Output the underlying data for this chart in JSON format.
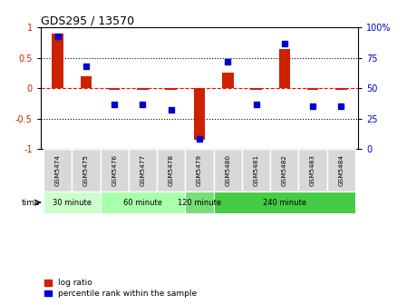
{
  "title": "GDS295 / 13570",
  "samples": [
    "GSM5474",
    "GSM5475",
    "GSM5476",
    "GSM5477",
    "GSM5478",
    "GSM5479",
    "GSM5480",
    "GSM5481",
    "GSM5482",
    "GSM5483",
    "GSM5484"
  ],
  "log_ratio": [
    0.9,
    0.2,
    -0.02,
    -0.03,
    -0.02,
    -0.85,
    0.25,
    -0.03,
    0.65,
    -0.03,
    -0.03
  ],
  "percentile": [
    93,
    68,
    37,
    37,
    32,
    8,
    72,
    37,
    87,
    35,
    35
  ],
  "log_ratio_color": "#cc2200",
  "percentile_color": "#0000cc",
  "ylim_left": [
    -1,
    1
  ],
  "ylim_right": [
    0,
    100
  ],
  "yticks_left": [
    -1,
    -0.5,
    0,
    0.5,
    1
  ],
  "yticks_right": [
    0,
    25,
    50,
    75,
    100
  ],
  "ytick_labels_left": [
    "-1",
    "-0.5",
    "0",
    "0.5",
    "1"
  ],
  "ytick_labels_right": [
    "0",
    "25",
    "50",
    "75",
    "100%"
  ],
  "groups": [
    {
      "label": "30 minute",
      "start": 0,
      "end": 2,
      "color": "#ccffcc"
    },
    {
      "label": "60 minute",
      "start": 2,
      "end": 5,
      "color": "#aaffaa"
    },
    {
      "label": "120 minute",
      "start": 5,
      "end": 6,
      "color": "#77dd77"
    },
    {
      "label": "240 minute",
      "start": 6,
      "end": 11,
      "color": "#44cc44"
    }
  ],
  "time_label": "time",
  "legend_log_ratio": "log ratio",
  "legend_percentile": "percentile rank within the sample",
  "bar_width": 0.4,
  "background_color": "#ffffff",
  "tick_label_size": 7,
  "sample_cell_color": "#d8d8d8",
  "sample_border_color": "#ffffff"
}
